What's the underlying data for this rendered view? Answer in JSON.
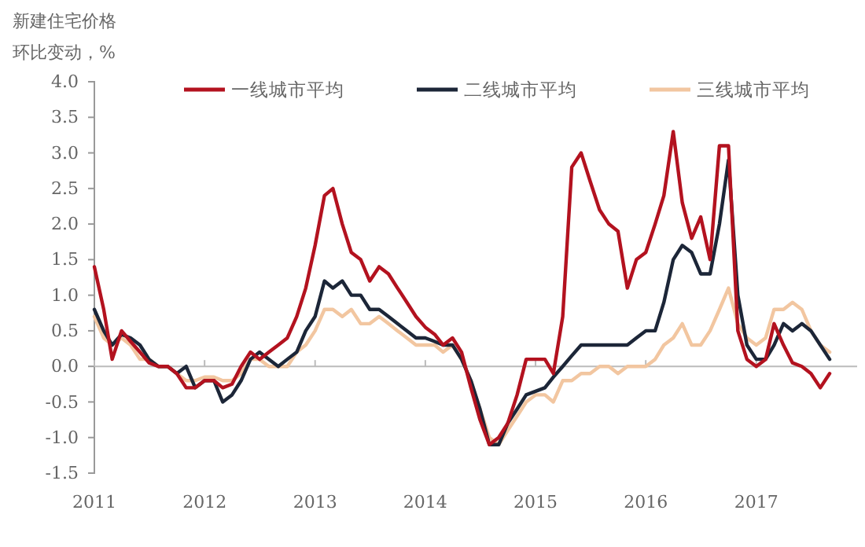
{
  "chart_data": {
    "type": "line",
    "ylabel": "新建住宅价格环比变动，%",
    "x": [
      "2011-01",
      "2011-02",
      "2011-03",
      "2011-04",
      "2011-05",
      "2011-06",
      "2011-07",
      "2011-08",
      "2011-09",
      "2011-10",
      "2011-11",
      "2011-12",
      "2012-01",
      "2012-02",
      "2012-03",
      "2012-04",
      "2012-05",
      "2012-06",
      "2012-07",
      "2012-08",
      "2012-09",
      "2012-10",
      "2012-11",
      "2012-12",
      "2013-01",
      "2013-02",
      "2013-03",
      "2013-04",
      "2013-05",
      "2013-06",
      "2013-07",
      "2013-08",
      "2013-09",
      "2013-10",
      "2013-11",
      "2013-12",
      "2014-01",
      "2014-02",
      "2014-03",
      "2014-04",
      "2014-05",
      "2014-06",
      "2014-07",
      "2014-08",
      "2014-09",
      "2014-10",
      "2014-11",
      "2014-12",
      "2015-01",
      "2015-02",
      "2015-03",
      "2015-04",
      "2015-05",
      "2015-06",
      "2015-07",
      "2015-08",
      "2015-09",
      "2015-10",
      "2015-11",
      "2015-12",
      "2016-01",
      "2016-02",
      "2016-03",
      "2016-04",
      "2016-05",
      "2016-06",
      "2016-07",
      "2016-08",
      "2016-09",
      "2016-10",
      "2016-11",
      "2016-12",
      "2017-01",
      "2017-02",
      "2017-03",
      "2017-04",
      "2017-05",
      "2017-06",
      "2017-07",
      "2017-08",
      "2017-09"
    ],
    "series": [
      {
        "name": "一线城市平均",
        "color": "#b3121f",
        "values": [
          1.4,
          0.8,
          0.1,
          0.5,
          0.35,
          0.2,
          0.05,
          0.0,
          0.0,
          -0.1,
          -0.3,
          -0.3,
          -0.2,
          -0.2,
          -0.3,
          -0.25,
          0.0,
          0.2,
          0.1,
          0.2,
          0.3,
          0.4,
          0.7,
          1.1,
          1.7,
          2.4,
          2.5,
          2.0,
          1.6,
          1.5,
          1.2,
          1.4,
          1.3,
          1.1,
          0.9,
          0.7,
          0.55,
          0.45,
          0.3,
          0.4,
          0.2,
          -0.3,
          -0.75,
          -1.1,
          -1.0,
          -0.8,
          -0.4,
          0.1,
          0.1,
          0.1,
          -0.1,
          0.7,
          2.8,
          3.0,
          2.6,
          2.2,
          2.0,
          1.9,
          1.1,
          1.5,
          1.6,
          2.0,
          2.4,
          3.3,
          2.3,
          1.8,
          2.1,
          1.5,
          3.1,
          3.1,
          0.5,
          0.1,
          0.0,
          0.1,
          0.6,
          0.3,
          0.05,
          0.0,
          -0.1,
          -0.3,
          -0.1
        ]
      },
      {
        "name": "二线城市平均",
        "color": "#1c2638",
        "values": [
          0.8,
          0.5,
          0.3,
          0.45,
          0.4,
          0.3,
          0.1,
          0.0,
          0.0,
          -0.1,
          0.0,
          -0.3,
          -0.2,
          -0.2,
          -0.5,
          -0.4,
          -0.2,
          0.1,
          0.2,
          0.1,
          0.0,
          0.1,
          0.2,
          0.5,
          0.7,
          1.2,
          1.1,
          1.2,
          1.0,
          1.0,
          0.8,
          0.8,
          0.7,
          0.6,
          0.5,
          0.4,
          0.4,
          0.35,
          0.3,
          0.3,
          0.1,
          -0.2,
          -0.6,
          -1.1,
          -1.1,
          -0.8,
          -0.6,
          -0.4,
          -0.35,
          -0.3,
          -0.15,
          0.0,
          0.15,
          0.3,
          0.3,
          0.3,
          0.3,
          0.3,
          0.3,
          0.4,
          0.5,
          0.5,
          0.9,
          1.5,
          1.7,
          1.6,
          1.3,
          1.3,
          2.0,
          2.9,
          1.0,
          0.3,
          0.1,
          0.1,
          0.3,
          0.6,
          0.5,
          0.6,
          0.5,
          0.3,
          0.1
        ]
      },
      {
        "name": "三线城市平均",
        "color": "#f2c6a0",
        "values": [
          0.7,
          0.4,
          0.3,
          0.4,
          0.3,
          0.1,
          0.1,
          0.0,
          0.0,
          -0.1,
          -0.2,
          -0.2,
          -0.15,
          -0.15,
          -0.2,
          -0.2,
          -0.1,
          0.1,
          0.1,
          0.0,
          0.0,
          0.0,
          0.2,
          0.3,
          0.5,
          0.8,
          0.8,
          0.7,
          0.8,
          0.6,
          0.6,
          0.7,
          0.6,
          0.5,
          0.4,
          0.3,
          0.3,
          0.3,
          0.2,
          0.3,
          0.1,
          -0.2,
          -0.6,
          -1.0,
          -1.1,
          -0.9,
          -0.7,
          -0.5,
          -0.4,
          -0.4,
          -0.5,
          -0.2,
          -0.2,
          -0.1,
          -0.1,
          0.0,
          0.0,
          -0.1,
          0.0,
          0.0,
          0.0,
          0.1,
          0.3,
          0.4,
          0.6,
          0.3,
          0.3,
          0.5,
          0.8,
          1.1,
          0.6,
          0.4,
          0.3,
          0.4,
          0.8,
          0.8,
          0.9,
          0.8,
          0.5,
          0.3,
          0.2
        ]
      }
    ],
    "xlim": [
      "2011-01",
      "2017-12"
    ],
    "xticks": [
      "2011",
      "2012",
      "2013",
      "2014",
      "2015",
      "2016",
      "2017"
    ],
    "ylim": [
      -1.5,
      4
    ],
    "yticks": [
      {
        "value": -1.5,
        "label": "-1.5"
      },
      {
        "value": -1,
        "label": "-1.0"
      },
      {
        "value": -0.5,
        "label": "-0.5"
      },
      {
        "value": 0,
        "label": "0.0"
      },
      {
        "value": 0.5,
        "label": "0.5"
      },
      {
        "value": 1,
        "label": "1.0"
      },
      {
        "value": 1.5,
        "label": "1.5"
      },
      {
        "value": 2,
        "label": "2.0"
      },
      {
        "value": 2.5,
        "label": "2.5"
      },
      {
        "value": 3,
        "label": "3.0"
      },
      {
        "value": 3.5,
        "label": "3.5"
      },
      {
        "value": 4,
        "label": "4.0"
      }
    ],
    "legend": "top",
    "marker": "none",
    "line_style": "solid"
  }
}
